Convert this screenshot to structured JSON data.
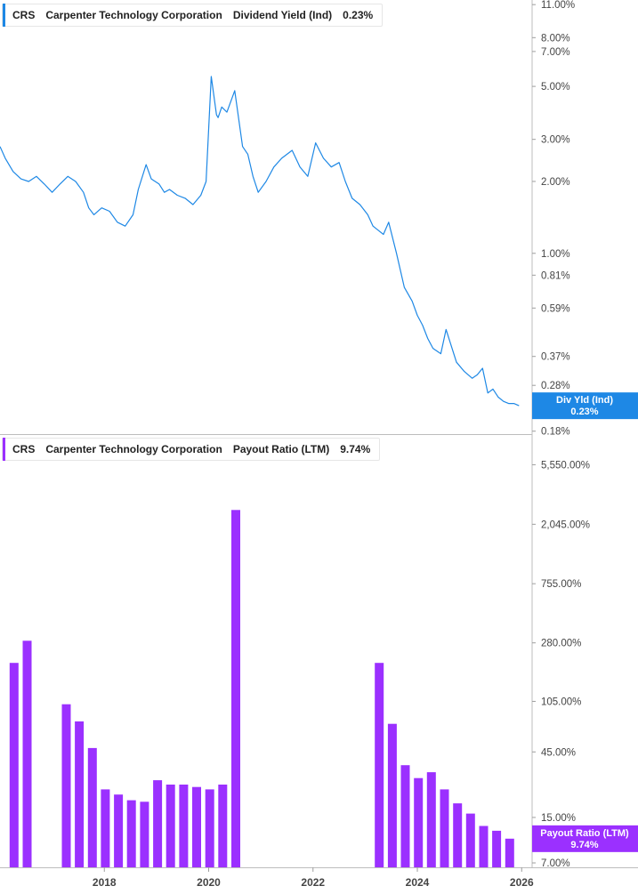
{
  "chart_data": [
    {
      "type": "line",
      "legend": {
        "ticker": "CRS",
        "company": "Carpenter Technology Corporation",
        "metric": "Dividend Yield (Ind)",
        "value": "0.23%"
      },
      "badge": {
        "label": "Div Yld (Ind)",
        "value": "0.23%"
      },
      "color": "#1e88e5",
      "yscale": "log",
      "ylim": [
        0.175,
        11.5
      ],
      "yticks": [
        {
          "v": 11,
          "label": "11.00%"
        },
        {
          "v": 8,
          "label": "8.00%"
        },
        {
          "v": 7,
          "label": "7.00%"
        },
        {
          "v": 5,
          "label": "5.00%"
        },
        {
          "v": 3,
          "label": "3.00%"
        },
        {
          "v": 2,
          "label": "2.00%"
        },
        {
          "v": 1,
          "label": "1.00%"
        },
        {
          "v": 0.81,
          "label": "0.81%"
        },
        {
          "v": 0.59,
          "label": "0.59%"
        },
        {
          "v": 0.37,
          "label": "0.37%"
        },
        {
          "v": 0.28,
          "label": "0.28%"
        },
        {
          "v": 0.18,
          "label": "0.18%"
        }
      ],
      "series": [
        {
          "x": [
            2016.0,
            2016.1,
            2016.25,
            2016.4,
            2016.55,
            2016.7,
            2016.85,
            2017.0,
            2017.15,
            2017.3,
            2017.45,
            2017.6,
            2017.7,
            2017.8,
            2017.95,
            2018.1,
            2018.25,
            2018.4,
            2018.55,
            2018.65,
            2018.8,
            2018.9,
            2019.05,
            2019.15,
            2019.25,
            2019.4,
            2019.55,
            2019.7,
            2019.85,
            2019.95,
            2020.05,
            2020.15,
            2020.18,
            2020.25,
            2020.35,
            2020.5,
            2020.65,
            2020.75,
            2020.85,
            2020.95,
            2021.1,
            2021.25,
            2021.4,
            2021.6,
            2021.75,
            2021.9,
            2022.05,
            2022.2,
            2022.35,
            2022.5,
            2022.62,
            2022.75,
            2022.9,
            2023.05,
            2023.15,
            2023.25,
            2023.35,
            2023.45,
            2023.6,
            2023.75,
            2023.9,
            2024.0,
            2024.1,
            2024.2,
            2024.3,
            2024.45,
            2024.55,
            2024.75,
            2024.9,
            2025.05,
            2025.15,
            2025.25,
            2025.35,
            2025.45,
            2025.55,
            2025.65,
            2025.75,
            2025.85,
            2025.95
          ],
          "y": [
            2.8,
            2.5,
            2.2,
            2.05,
            2.0,
            2.1,
            1.95,
            1.8,
            1.95,
            2.1,
            2.0,
            1.8,
            1.55,
            1.45,
            1.55,
            1.5,
            1.35,
            1.3,
            1.45,
            1.85,
            2.35,
            2.05,
            1.95,
            1.8,
            1.85,
            1.75,
            1.7,
            1.6,
            1.75,
            2.0,
            5.5,
            3.8,
            3.7,
            4.1,
            3.9,
            4.8,
            2.8,
            2.6,
            2.1,
            1.8,
            2.0,
            2.3,
            2.5,
            2.7,
            2.3,
            2.1,
            2.9,
            2.5,
            2.3,
            2.4,
            2.0,
            1.7,
            1.6,
            1.45,
            1.3,
            1.25,
            1.2,
            1.35,
            1.0,
            0.72,
            0.63,
            0.55,
            0.5,
            0.44,
            0.4,
            0.38,
            0.48,
            0.35,
            0.32,
            0.3,
            0.31,
            0.33,
            0.26,
            0.27,
            0.25,
            0.24,
            0.235,
            0.235,
            0.23
          ]
        }
      ]
    },
    {
      "type": "bar",
      "legend": {
        "ticker": "CRS",
        "company": "Carpenter Technology Corporation",
        "metric": "Payout Ratio (LTM)",
        "value": "9.74%"
      },
      "badge": {
        "label": "Payout Ratio (LTM)",
        "value": "9.74%"
      },
      "color": "#9b30ff",
      "yscale": "log",
      "ylim": [
        6.5,
        9000
      ],
      "yticks": [
        {
          "v": 5550,
          "label": "5,550.00%"
        },
        {
          "v": 2045,
          "label": "2,045.00%"
        },
        {
          "v": 755,
          "label": "755.00%"
        },
        {
          "v": 280,
          "label": "280.00%"
        },
        {
          "v": 105,
          "label": "105.00%"
        },
        {
          "v": 45,
          "label": "45.00%"
        },
        {
          "v": 15,
          "label": "15.00%"
        },
        {
          "v": 7,
          "label": "7.00%"
        }
      ],
      "series": [
        {
          "x": [
            2016.27,
            2016.52,
            2017.27,
            2017.52,
            2017.77,
            2018.02,
            2018.27,
            2018.52,
            2018.77,
            2019.02,
            2019.27,
            2019.52,
            2019.77,
            2020.02,
            2020.27,
            2020.52,
            2023.27,
            2023.52,
            2023.77,
            2024.02,
            2024.27,
            2024.52,
            2024.77,
            2025.02,
            2025.27,
            2025.52,
            2025.77
          ],
          "y": [
            200,
            290,
            100,
            75,
            48,
            24,
            22,
            20,
            19.5,
            28,
            26,
            26,
            25,
            24,
            26,
            2600,
            200,
            72,
            36,
            29,
            32,
            24,
            19,
            16,
            13,
            12,
            10.5
          ]
        }
      ]
    }
  ],
  "x_axis": {
    "xlim": [
      2016.0,
      2026.2
    ],
    "ticks": [
      {
        "v": 2018,
        "label": "2018"
      },
      {
        "v": 2020,
        "label": "2020"
      },
      {
        "v": 2022,
        "label": "2022"
      },
      {
        "v": 2024,
        "label": "2024"
      },
      {
        "v": 2026,
        "label": "2026"
      }
    ]
  }
}
